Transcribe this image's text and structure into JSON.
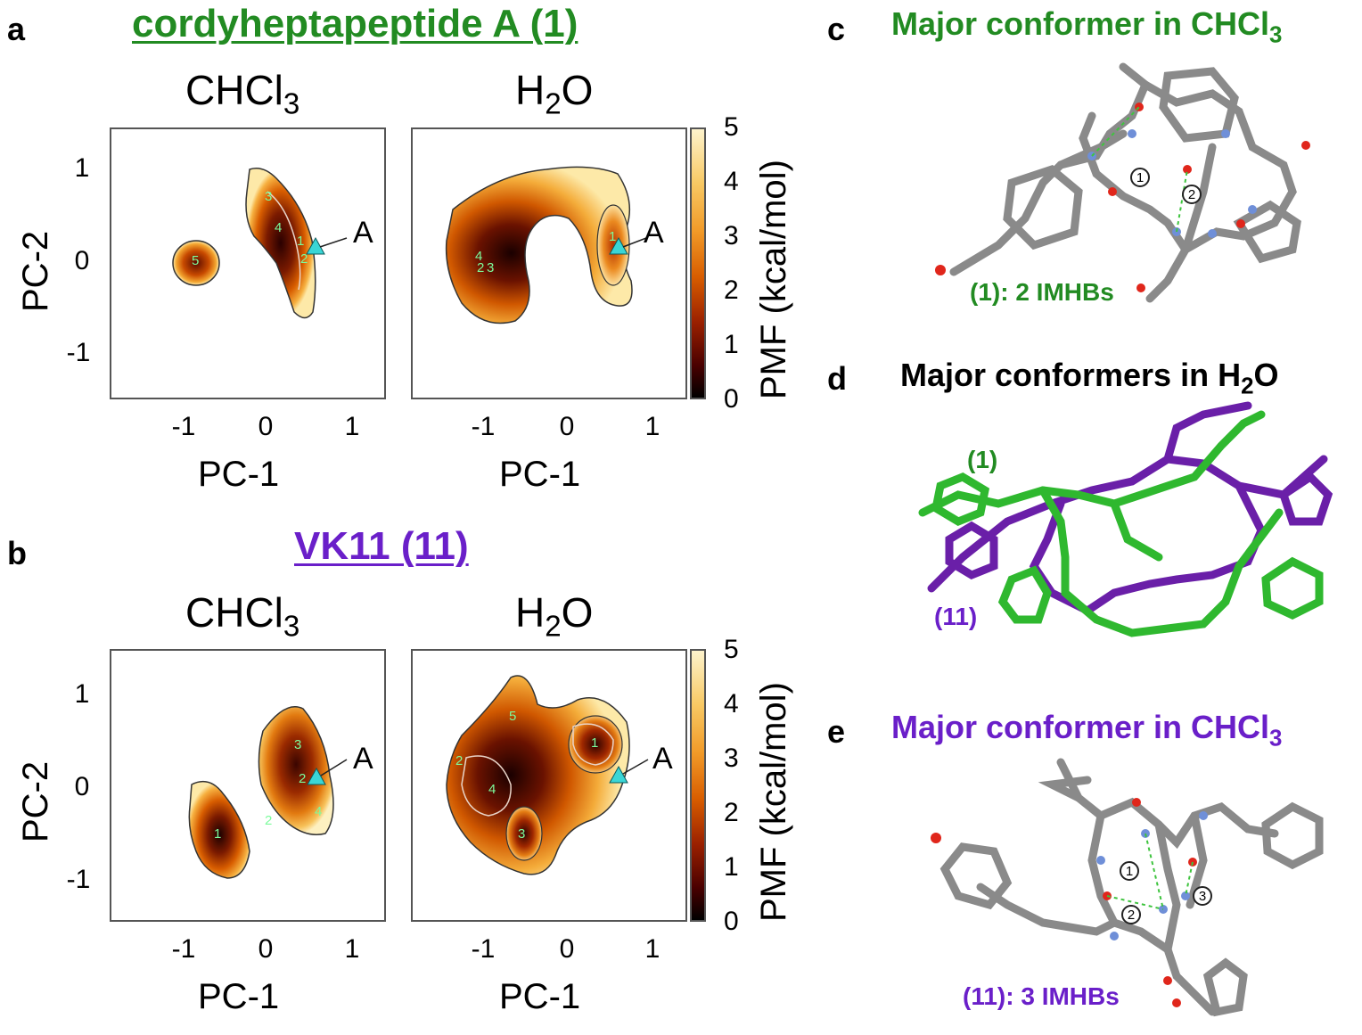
{
  "panels": {
    "a": {
      "letter": "a",
      "title": "cordyheptapeptide A (1)",
      "title_color": "#228B22",
      "left_solvent": "CHCl3",
      "right_solvent": "H2O",
      "point_label": "A"
    },
    "b": {
      "letter": "b",
      "title": "VK11 (11)",
      "title_color": "#6A1FC9",
      "left_solvent": "CHCl3",
      "right_solvent": "H2O",
      "point_label": "A"
    },
    "c": {
      "letter": "c",
      "title": "Major conformer in CHCl3",
      "title_color": "#228B22",
      "caption": "(1): 2 IMHBs",
      "hbonds": [
        "1",
        "2"
      ]
    },
    "d": {
      "letter": "d",
      "title": "Major conformers in H2O",
      "title_color": "#000000",
      "label_green": "(1)",
      "label_purple": "(11)"
    },
    "e": {
      "letter": "e",
      "title": "Major conformer in CHCl3",
      "title_color": "#6A1FC9",
      "caption": "(11): 3 IMHBs",
      "hbonds": [
        "1",
        "2",
        "3"
      ]
    }
  },
  "axes": {
    "xlabel": "PC-1",
    "ylabel": "PC-2",
    "colorbar_label": "PMF (kcal/mol)"
  },
  "chart_data": [
    {
      "type": "heatmap",
      "panel": "a-CHCl3",
      "xlabel": "PC-1",
      "ylabel": "PC-2",
      "xlim": [
        -1.8,
        1.4
      ],
      "ylim": [
        -1.5,
        1.5
      ],
      "x_ticks": [
        "-1",
        "0",
        "1"
      ],
      "y_ticks": [
        "1",
        "0",
        "-1"
      ],
      "minima_labels": [
        "1",
        "2",
        "3",
        "4",
        "5"
      ],
      "point_A": [
        0.6,
        0.15
      ]
    },
    {
      "type": "heatmap",
      "panel": "a-H2O",
      "xlabel": "PC-1",
      "xlim": [
        -1.8,
        1.4
      ],
      "ylim": [
        -1.5,
        1.5
      ],
      "x_ticks": [
        "-1",
        "0",
        "1"
      ],
      "minima_labels": [
        "1",
        "2",
        "3",
        "4"
      ],
      "point_A": [
        0.6,
        0.15
      ],
      "colorbar": {
        "label": "PMF (kcal/mol)",
        "min": 0,
        "max": 5,
        "ticks": [
          "5",
          "4",
          "3",
          "2",
          "1",
          "0"
        ]
      }
    },
    {
      "type": "heatmap",
      "panel": "b-CHCl3",
      "xlabel": "PC-1",
      "ylabel": "PC-2",
      "xlim": [
        -1.8,
        1.4
      ],
      "ylim": [
        -1.5,
        1.5
      ],
      "x_ticks": [
        "-1",
        "0",
        "1"
      ],
      "y_ticks": [
        "1",
        "0",
        "-1"
      ],
      "minima_labels": [
        "1",
        "2",
        "3",
        "4"
      ],
      "point_A": [
        0.6,
        0.1
      ]
    },
    {
      "type": "heatmap",
      "panel": "b-H2O",
      "xlabel": "PC-1",
      "xlim": [
        -1.8,
        1.4
      ],
      "ylim": [
        -1.5,
        1.5
      ],
      "x_ticks": [
        "-1",
        "0",
        "1"
      ],
      "minima_labels": [
        "1",
        "2",
        "3",
        "4",
        "5"
      ],
      "point_A": [
        0.6,
        0.1
      ],
      "colorbar": {
        "label": "PMF (kcal/mol)",
        "min": 0,
        "max": 5,
        "ticks": [
          "5",
          "4",
          "3",
          "2",
          "1",
          "0"
        ]
      }
    }
  ]
}
